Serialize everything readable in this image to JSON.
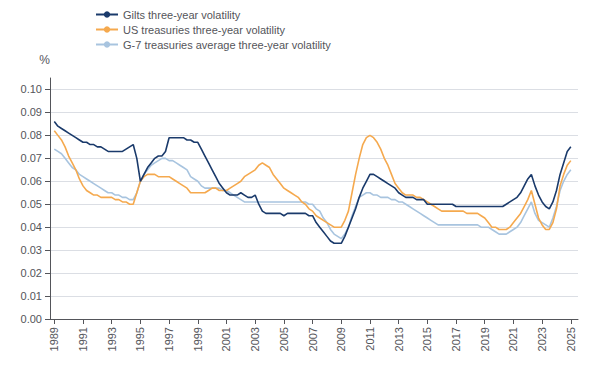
{
  "chart_data": {
    "type": "line",
    "ylabel": "%",
    "xlim": [
      1988.7,
      2025.5
    ],
    "xticks": [
      1989,
      1991,
      1993,
      1995,
      1997,
      1999,
      2001,
      2003,
      2005,
      2007,
      2009,
      2011,
      2013,
      2015,
      2017,
      2019,
      2021,
      2023,
      2025
    ],
    "ylim": [
      0,
      0.105
    ],
    "yticks": [
      {
        "value": 0,
        "label": "0.00"
      },
      0.01,
      0.02,
      0.03,
      0.04,
      0.05,
      0.06,
      0.07,
      0.08,
      0.09,
      {
        "value": 0.1,
        "label": "0.10"
      }
    ],
    "grid": true,
    "legend": "upper left",
    "x": [
      1989.0,
      1989.25,
      1989.5,
      1989.75,
      1990.0,
      1990.25,
      1990.5,
      1990.75,
      1991.0,
      1991.25,
      1991.5,
      1991.75,
      1992.0,
      1992.25,
      1992.5,
      1992.75,
      1993.0,
      1993.25,
      1993.5,
      1993.75,
      1994.0,
      1994.25,
      1994.5,
      1994.75,
      1995.0,
      1995.25,
      1995.5,
      1995.75,
      1996.0,
      1996.25,
      1996.5,
      1996.75,
      1997.0,
      1997.25,
      1997.5,
      1997.75,
      1998.0,
      1998.25,
      1998.5,
      1998.75,
      1999.0,
      1999.25,
      1999.5,
      1999.75,
      2000.0,
      2000.25,
      2000.5,
      2000.75,
      2001.0,
      2001.25,
      2001.5,
      2001.75,
      2002.0,
      2002.25,
      2002.5,
      2002.75,
      2003.0,
      2003.25,
      2003.5,
      2003.75,
      2004.0,
      2004.25,
      2004.5,
      2004.75,
      2005.0,
      2005.25,
      2005.5,
      2005.75,
      2006.0,
      2006.25,
      2006.5,
      2006.75,
      2007.0,
      2007.25,
      2007.5,
      2007.75,
      2008.0,
      2008.25,
      2008.5,
      2008.75,
      2009.0,
      2009.25,
      2009.5,
      2009.75,
      2010.0,
      2010.25,
      2010.5,
      2010.75,
      2011.0,
      2011.25,
      2011.5,
      2011.75,
      2012.0,
      2012.25,
      2012.5,
      2012.75,
      2013.0,
      2013.25,
      2013.5,
      2013.75,
      2014.0,
      2014.25,
      2014.5,
      2014.75,
      2015.0,
      2015.25,
      2015.5,
      2015.75,
      2016.0,
      2016.25,
      2016.5,
      2016.75,
      2017.0,
      2017.25,
      2017.5,
      2017.75,
      2018.0,
      2018.25,
      2018.5,
      2018.75,
      2019.0,
      2019.25,
      2019.5,
      2019.75,
      2020.0,
      2020.25,
      2020.5,
      2020.75,
      2021.0,
      2021.25,
      2021.5,
      2021.75,
      2022.0,
      2022.25,
      2022.5,
      2022.75,
      2023.0,
      2023.25,
      2023.5,
      2023.75,
      2024.0,
      2024.25,
      2024.5,
      2024.75,
      2025.0
    ],
    "series": [
      {
        "name": "Gilts three-year volatility",
        "color": "#1a3a6b",
        "values": [
          0.086,
          0.084,
          0.083,
          0.082,
          0.081,
          0.08,
          0.079,
          0.078,
          0.077,
          0.077,
          0.076,
          0.076,
          0.075,
          0.075,
          0.074,
          0.073,
          0.073,
          0.073,
          0.073,
          0.073,
          0.074,
          0.075,
          0.076,
          0.07,
          0.06,
          0.063,
          0.066,
          0.068,
          0.07,
          0.071,
          0.071,
          0.073,
          0.079,
          0.079,
          0.079,
          0.079,
          0.079,
          0.078,
          0.078,
          0.077,
          0.077,
          0.074,
          0.071,
          0.068,
          0.065,
          0.062,
          0.059,
          0.057,
          0.055,
          0.054,
          0.054,
          0.054,
          0.055,
          0.054,
          0.053,
          0.053,
          0.054,
          0.05,
          0.047,
          0.046,
          0.046,
          0.046,
          0.046,
          0.046,
          0.045,
          0.046,
          0.046,
          0.046,
          0.046,
          0.046,
          0.046,
          0.045,
          0.045,
          0.042,
          0.04,
          0.038,
          0.036,
          0.034,
          0.033,
          0.033,
          0.033,
          0.036,
          0.04,
          0.044,
          0.048,
          0.053,
          0.057,
          0.06,
          0.063,
          0.063,
          0.062,
          0.061,
          0.06,
          0.059,
          0.058,
          0.057,
          0.055,
          0.054,
          0.053,
          0.053,
          0.053,
          0.052,
          0.052,
          0.052,
          0.05,
          0.05,
          0.05,
          0.05,
          0.05,
          0.05,
          0.05,
          0.05,
          0.049,
          0.049,
          0.049,
          0.049,
          0.049,
          0.049,
          0.049,
          0.049,
          0.049,
          0.049,
          0.049,
          0.049,
          0.049,
          0.049,
          0.05,
          0.051,
          0.052,
          0.053,
          0.055,
          0.058,
          0.061,
          0.063,
          0.058,
          0.054,
          0.051,
          0.049,
          0.048,
          0.051,
          0.056,
          0.063,
          0.068,
          0.073,
          0.075
        ]
      },
      {
        "name": "US treasuries three-year volatility",
        "color": "#f5a94e",
        "values": [
          0.082,
          0.08,
          0.078,
          0.075,
          0.071,
          0.068,
          0.065,
          0.061,
          0.058,
          0.056,
          0.055,
          0.054,
          0.054,
          0.053,
          0.053,
          0.053,
          0.053,
          0.052,
          0.052,
          0.051,
          0.051,
          0.05,
          0.05,
          0.055,
          0.06,
          0.062,
          0.063,
          0.063,
          0.063,
          0.062,
          0.062,
          0.062,
          0.062,
          0.061,
          0.06,
          0.059,
          0.058,
          0.057,
          0.055,
          0.055,
          0.055,
          0.055,
          0.055,
          0.056,
          0.057,
          0.057,
          0.056,
          0.056,
          0.056,
          0.057,
          0.058,
          0.059,
          0.06,
          0.062,
          0.063,
          0.064,
          0.065,
          0.067,
          0.068,
          0.067,
          0.066,
          0.063,
          0.061,
          0.059,
          0.057,
          0.056,
          0.055,
          0.054,
          0.053,
          0.051,
          0.05,
          0.048,
          0.047,
          0.045,
          0.044,
          0.043,
          0.042,
          0.041,
          0.04,
          0.04,
          0.04,
          0.043,
          0.047,
          0.055,
          0.063,
          0.07,
          0.076,
          0.079,
          0.08,
          0.079,
          0.077,
          0.074,
          0.07,
          0.067,
          0.063,
          0.059,
          0.057,
          0.055,
          0.054,
          0.054,
          0.054,
          0.053,
          0.053,
          0.052,
          0.051,
          0.05,
          0.049,
          0.048,
          0.047,
          0.047,
          0.047,
          0.047,
          0.047,
          0.047,
          0.047,
          0.046,
          0.046,
          0.046,
          0.046,
          0.045,
          0.044,
          0.042,
          0.04,
          0.04,
          0.039,
          0.039,
          0.039,
          0.04,
          0.042,
          0.044,
          0.046,
          0.049,
          0.052,
          0.056,
          0.05,
          0.044,
          0.041,
          0.039,
          0.039,
          0.042,
          0.048,
          0.058,
          0.063,
          0.067,
          0.069
        ]
      },
      {
        "name": "G-7 treasuries average three-year volatility",
        "color": "#a8c4df",
        "values": [
          0.074,
          0.073,
          0.072,
          0.07,
          0.068,
          0.066,
          0.065,
          0.063,
          0.062,
          0.061,
          0.06,
          0.059,
          0.058,
          0.057,
          0.056,
          0.055,
          0.055,
          0.054,
          0.054,
          0.053,
          0.053,
          0.052,
          0.052,
          0.055,
          0.06,
          0.063,
          0.065,
          0.067,
          0.068,
          0.069,
          0.07,
          0.07,
          0.069,
          0.069,
          0.068,
          0.067,
          0.066,
          0.065,
          0.062,
          0.061,
          0.06,
          0.058,
          0.057,
          0.057,
          0.057,
          0.057,
          0.057,
          0.056,
          0.056,
          0.055,
          0.054,
          0.053,
          0.052,
          0.051,
          0.051,
          0.051,
          0.051,
          0.051,
          0.051,
          0.051,
          0.051,
          0.051,
          0.051,
          0.051,
          0.051,
          0.051,
          0.051,
          0.051,
          0.051,
          0.051,
          0.051,
          0.05,
          0.05,
          0.048,
          0.047,
          0.044,
          0.042,
          0.039,
          0.037,
          0.036,
          0.035,
          0.037,
          0.04,
          0.045,
          0.049,
          0.053,
          0.054,
          0.055,
          0.055,
          0.054,
          0.054,
          0.053,
          0.053,
          0.053,
          0.052,
          0.052,
          0.051,
          0.051,
          0.05,
          0.049,
          0.048,
          0.047,
          0.046,
          0.045,
          0.044,
          0.043,
          0.042,
          0.041,
          0.041,
          0.041,
          0.041,
          0.041,
          0.041,
          0.041,
          0.041,
          0.041,
          0.041,
          0.041,
          0.041,
          0.04,
          0.04,
          0.04,
          0.039,
          0.038,
          0.037,
          0.037,
          0.037,
          0.038,
          0.039,
          0.04,
          0.042,
          0.045,
          0.048,
          0.051,
          0.046,
          0.043,
          0.042,
          0.041,
          0.04,
          0.044,
          0.049,
          0.056,
          0.06,
          0.063,
          0.065
        ]
      }
    ]
  }
}
